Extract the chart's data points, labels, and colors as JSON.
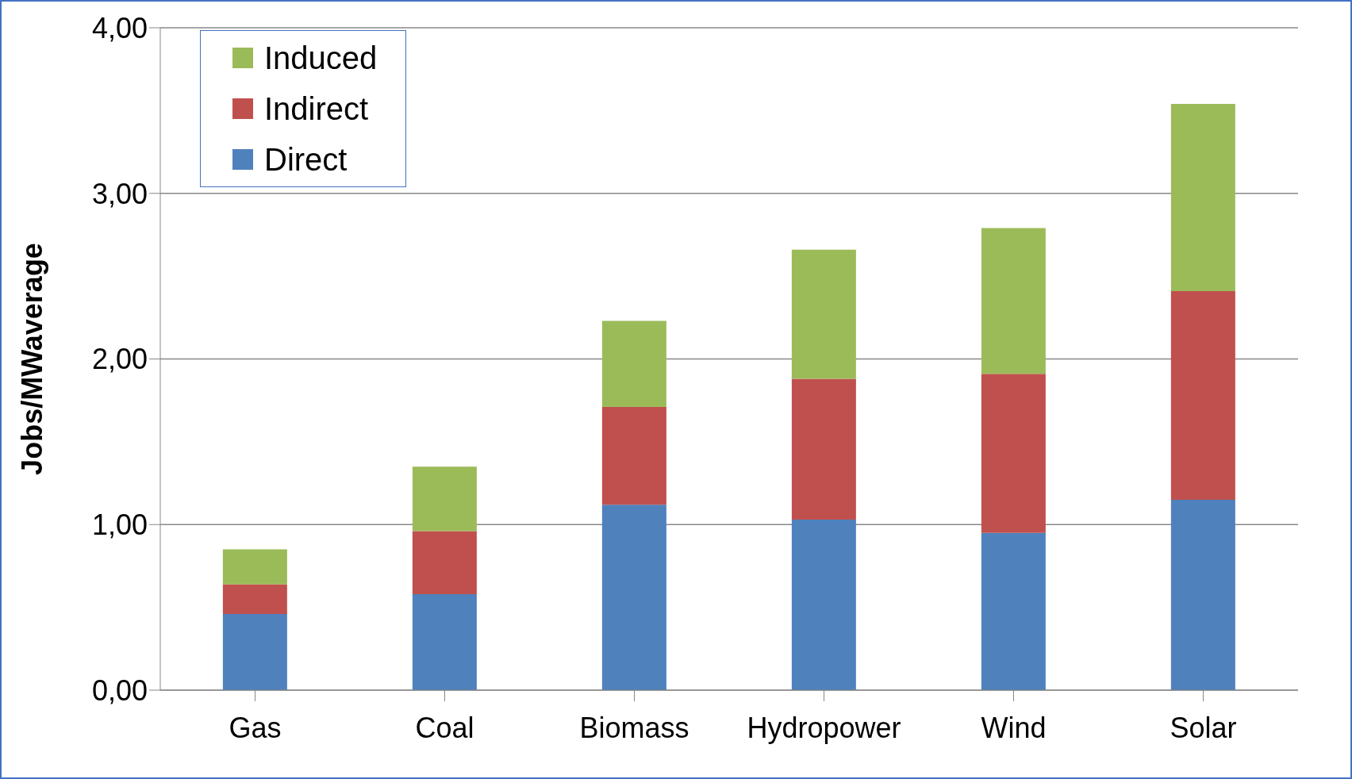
{
  "chart_data": {
    "type": "bar",
    "stacked": true,
    "ylabel": "Jobs/MWaverage",
    "categories": [
      "Gas",
      "Coal",
      "Biomass",
      "Hydropower",
      "Wind",
      "Solar"
    ],
    "series": [
      {
        "name": "Direct",
        "color": "#4f81bd",
        "values": [
          0.46,
          0.58,
          1.12,
          1.03,
          0.95,
          1.15
        ]
      },
      {
        "name": "Indirect",
        "color": "#c0504d",
        "values": [
          0.18,
          0.38,
          0.59,
          0.85,
          0.96,
          1.26
        ]
      },
      {
        "name": "Induced",
        "color": "#9bbb59",
        "values": [
          0.21,
          0.39,
          0.52,
          0.78,
          0.88,
          1.13
        ]
      }
    ],
    "ylim": [
      0,
      4
    ],
    "yticks": [
      {
        "value": 0,
        "label": "0,00"
      },
      {
        "value": 1,
        "label": "1,00"
      },
      {
        "value": 2,
        "label": "2,00"
      },
      {
        "value": 3,
        "label": "3,00"
      },
      {
        "value": 4,
        "label": "4,00"
      }
    ],
    "grid": "y",
    "legend": "top left"
  }
}
